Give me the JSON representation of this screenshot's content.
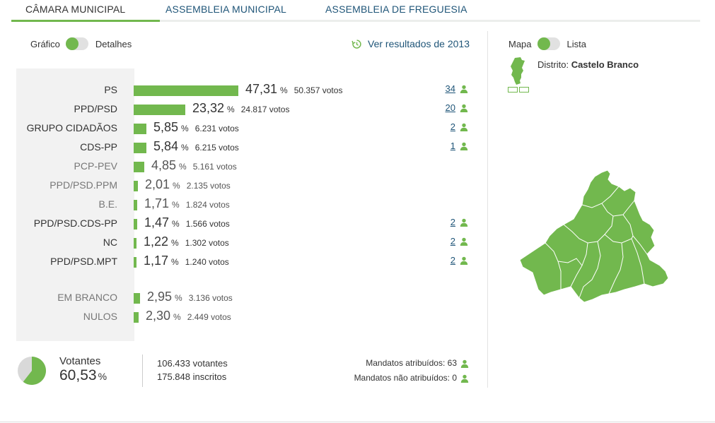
{
  "tabs": [
    {
      "label": "CÂMARA MUNICIPAL",
      "active": true
    },
    {
      "label": "ASSEMBLEIA MUNICIPAL",
      "active": false
    },
    {
      "label": "ASSEMBLEIA DE FREGUESIA",
      "active": false
    }
  ],
  "view_toggle": {
    "left": "Gráfico",
    "right": "Detalhes"
  },
  "history_link": "Ver resultados de 2013",
  "results": [
    {
      "party": "PS",
      "pct": "47,31",
      "pct_value": 47.31,
      "votes": "50.357 votos",
      "mandates": "34",
      "muted": false
    },
    {
      "party": "PPD/PSD",
      "pct": "23,32",
      "pct_value": 23.32,
      "votes": "24.817 votos",
      "mandates": "20",
      "muted": false
    },
    {
      "party": "GRUPO CIDADÃOS",
      "pct": "5,85",
      "pct_value": 5.85,
      "votes": "6.231 votos",
      "mandates": "2",
      "muted": false
    },
    {
      "party": "CDS-PP",
      "pct": "5,84",
      "pct_value": 5.84,
      "votes": "6.215 votos",
      "mandates": "1",
      "muted": false
    },
    {
      "party": "PCP-PEV",
      "pct": "4,85",
      "pct_value": 4.85,
      "votes": "5.161 votos",
      "mandates": "",
      "muted": true
    },
    {
      "party": "PPD/PSD.PPM",
      "pct": "2,01",
      "pct_value": 2.01,
      "votes": "2.135 votos",
      "mandates": "",
      "muted": true
    },
    {
      "party": "B.E.",
      "pct": "1,71",
      "pct_value": 1.71,
      "votes": "1.824 votos",
      "mandates": "",
      "muted": true
    },
    {
      "party": "PPD/PSD.CDS-PP",
      "pct": "1,47",
      "pct_value": 1.47,
      "votes": "1.566 votos",
      "mandates": "2",
      "muted": false
    },
    {
      "party": "NC",
      "pct": "1,22",
      "pct_value": 1.22,
      "votes": "1.302 votos",
      "mandates": "2",
      "muted": false
    },
    {
      "party": "PPD/PSD.MPT",
      "pct": "1,17",
      "pct_value": 1.17,
      "votes": "1.240 votos",
      "mandates": "2",
      "muted": false
    },
    {
      "party": "EM BRANCO",
      "pct": "2,95",
      "pct_value": 2.95,
      "votes": "3.136 votos",
      "mandates": "",
      "muted": true
    },
    {
      "party": "NULOS",
      "pct": "2,30",
      "pct_value": 2.3,
      "votes": "2.449 votos",
      "mandates": "",
      "muted": true
    }
  ],
  "summary": {
    "votantes_label": "Votantes",
    "votantes_pct": "60,53",
    "votantes_pct_value": 60.53,
    "pct_symbol": "%",
    "votantes_count": "106.433 votantes",
    "inscritos_count": "175.848 inscritos",
    "mandatos_atribuidos": "Mandatos atribuídos: 63",
    "mandatos_nao_atribuidos": "Mandatos não atribuídos: 0"
  },
  "map_toggle": {
    "left": "Mapa",
    "right": "Lista"
  },
  "distrito": {
    "label": "Distrito:",
    "name": "Castelo Branco"
  },
  "colors": {
    "accent": "#72b84e",
    "link": "#1f5578",
    "toggle_track": "#e1e1e1",
    "pie_rest": "#d9d9d9"
  }
}
